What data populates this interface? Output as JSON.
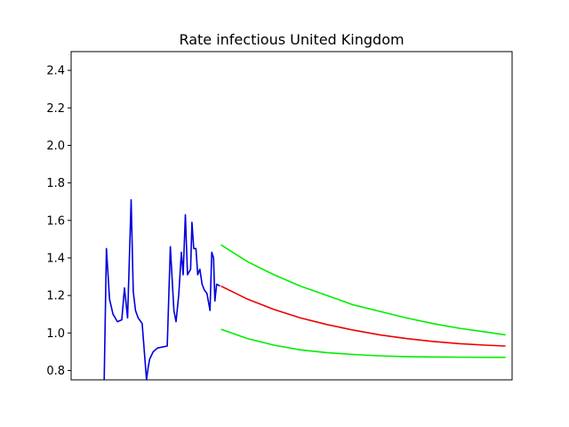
{
  "chart_data": {
    "type": "line",
    "title": "Rate infectious United Kingdom",
    "xlabel": "",
    "ylabel": "",
    "ylim": [
      0.75,
      2.5
    ],
    "xlim": [
      0,
      100
    ],
    "grid": false,
    "x_tick_labels_shown": false,
    "y_ticks": [
      0.8,
      1.0,
      1.2,
      1.4,
      1.6,
      1.8,
      2.0,
      2.2,
      2.4
    ],
    "y_tick_labels": [
      "0.8",
      "1.0",
      "1.2",
      "1.4",
      "1.6",
      "1.8",
      "2.0",
      "2.2",
      "2.4"
    ],
    "series": [
      {
        "color": "#0000dd",
        "x": [
          7.5,
          8.0,
          8.7,
          9.5,
          10.5,
          11.5,
          12.1,
          12.8,
          13.6,
          14.1,
          14.6,
          15.2,
          16.1,
          17.1,
          17.5,
          17.8,
          18.6,
          19.6,
          21.8,
          22.5,
          23.3,
          23.8,
          24.4,
          25.0,
          25.4,
          25.9,
          26.4,
          27.1,
          27.4,
          27.8,
          28.3,
          28.7,
          29.2,
          29.7,
          30.2,
          30.8,
          31.5,
          31.9,
          32.3,
          32.6,
          33.0,
          33.8
        ],
        "y": [
          0.75,
          1.45,
          1.18,
          1.1,
          1.06,
          1.07,
          1.24,
          1.08,
          1.71,
          1.22,
          1.12,
          1.08,
          1.05,
          0.75,
          0.82,
          0.86,
          0.9,
          0.92,
          0.93,
          1.46,
          1.12,
          1.06,
          1.2,
          1.43,
          1.31,
          1.63,
          1.31,
          1.34,
          1.59,
          1.45,
          1.45,
          1.31,
          1.34,
          1.26,
          1.23,
          1.21,
          1.12,
          1.43,
          1.4,
          1.17,
          1.26,
          1.25
        ]
      },
      {
        "color": "#00ee00",
        "x": [
          34.0,
          40,
          46,
          52,
          58,
          64,
          70,
          76,
          82,
          88,
          94,
          98.5
        ],
        "y": [
          1.47,
          1.38,
          1.31,
          1.25,
          1.2,
          1.15,
          1.115,
          1.08,
          1.05,
          1.025,
          1.005,
          0.99
        ]
      },
      {
        "color": "#ee0000",
        "x": [
          34.0,
          40,
          46,
          52,
          58,
          64,
          70,
          76,
          82,
          88,
          94,
          98.5
        ],
        "y": [
          1.25,
          1.18,
          1.125,
          1.08,
          1.045,
          1.015,
          0.99,
          0.97,
          0.955,
          0.943,
          0.935,
          0.93
        ]
      },
      {
        "color": "#00ee00",
        "x": [
          34.0,
          40,
          46,
          52,
          58,
          64,
          70,
          76,
          82,
          88,
          94,
          98.5
        ],
        "y": [
          1.02,
          0.97,
          0.935,
          0.91,
          0.895,
          0.885,
          0.878,
          0.874,
          0.872,
          0.871,
          0.87,
          0.87
        ]
      }
    ]
  }
}
